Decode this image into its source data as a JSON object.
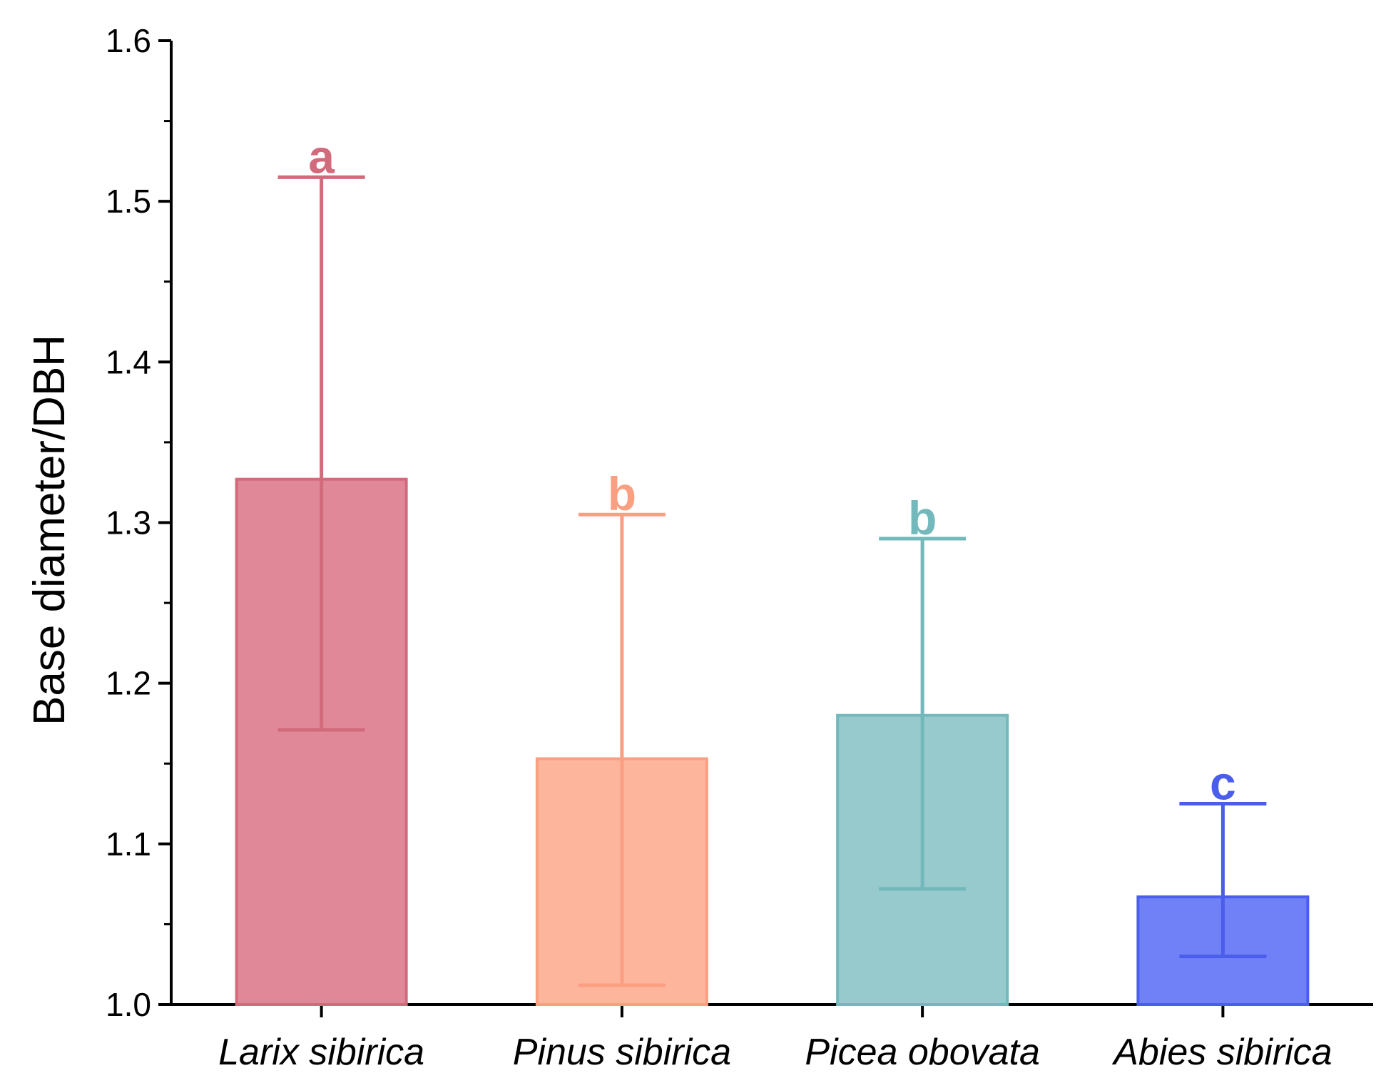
{
  "chart_data": {
    "type": "bar",
    "title": "",
    "xlabel": "",
    "ylabel": "Base diameter/DBH",
    "ylim": [
      1.0,
      1.6
    ],
    "yticks": [
      "1.0",
      "1.1",
      "1.2",
      "1.3",
      "1.4",
      "1.5",
      "1.6"
    ],
    "grid": false,
    "categories": [
      "Larix sibirica",
      "Pinus sibirica",
      "Picea obovata",
      "Abies sibirica"
    ],
    "values": [
      1.327,
      1.153,
      1.18,
      1.067
    ],
    "error_upper": [
      1.515,
      1.305,
      1.29,
      1.125
    ],
    "error_lower": [
      1.171,
      1.012,
      1.072,
      1.03
    ],
    "significance": [
      "a",
      "b",
      "b",
      "c"
    ],
    "fill_colors": [
      "#E08898",
      "#FDB59C",
      "#96CACC",
      "#7080F6"
    ],
    "stroke_colors": [
      "#D26A7C",
      "#FA9F82",
      "#73B8BB",
      "#4A5DEB"
    ]
  }
}
